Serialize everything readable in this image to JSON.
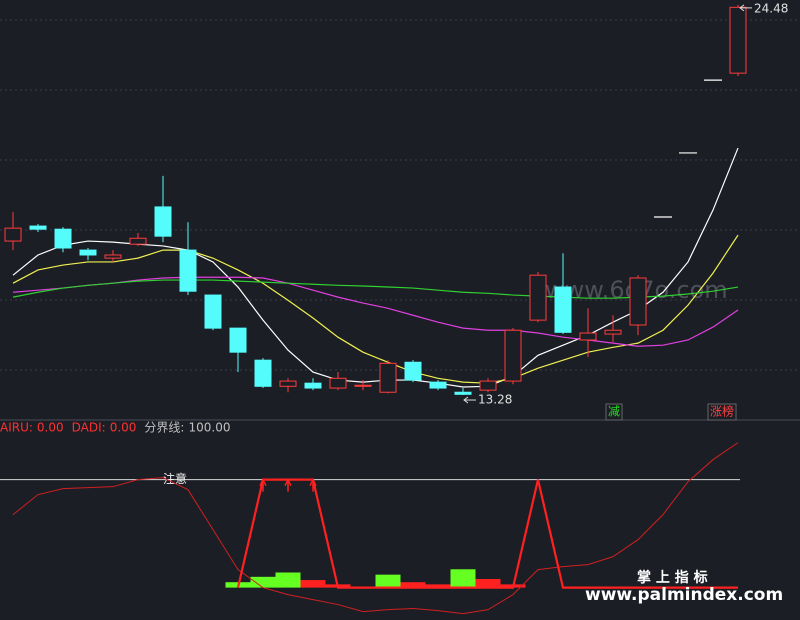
{
  "chart_data": [
    {
      "type": "candlestick",
      "ylim": [
        12.85,
        24.62
      ],
      "up_color": "#ff3c3c",
      "down_color": "#54fcfc",
      "flat_color": "#ffffff",
      "candles": {
        "open": [
          17.7,
          18.13,
          18.04,
          17.44,
          17.21,
          17.61,
          18.68,
          17.44,
          16.15,
          15.2,
          14.28,
          13.53,
          13.62,
          13.48,
          13.53,
          13.36,
          14.22,
          13.65,
          13.36,
          13.42,
          13.68,
          15.43,
          16.38,
          14.86,
          15.03,
          15.29,
          18.39,
          20.23,
          22.32,
          22.52
        ],
        "high": [
          18.53,
          18.19,
          18.1,
          17.5,
          17.44,
          17.93,
          19.57,
          18.24,
          16.15,
          15.2,
          14.34,
          13.76,
          13.76,
          13.94,
          13.71,
          14.28,
          14.28,
          13.71,
          13.48,
          13.76,
          15.2,
          16.81,
          17.35,
          15.77,
          15.57,
          16.72,
          18.39,
          20.23,
          22.32,
          24.48
        ],
        "low": [
          17.44,
          17.96,
          17.38,
          17.15,
          17.1,
          17.56,
          17.67,
          16.15,
          15.14,
          13.94,
          13.48,
          13.36,
          13.42,
          13.42,
          13.42,
          13.33,
          13.65,
          13.42,
          13.28,
          13.36,
          13.59,
          15.37,
          15.03,
          14.37,
          14.8,
          15.0,
          18.39,
          20.23,
          22.32,
          22.44
        ],
        "close": [
          18.07,
          18.04,
          17.5,
          17.3,
          17.3,
          17.78,
          17.84,
          16.26,
          15.2,
          14.51,
          13.53,
          13.68,
          13.48,
          13.76,
          13.56,
          14.19,
          13.71,
          13.48,
          13.3,
          13.68,
          15.14,
          16.72,
          15.08,
          15.06,
          15.14,
          16.64,
          18.39,
          20.23,
          22.32,
          24.41
        ]
      },
      "series": [
        {
          "color": "#ffffff",
          "values": [
            16.72,
            17.3,
            17.58,
            17.7,
            17.67,
            17.61,
            17.56,
            17.44,
            17.1,
            16.38,
            15.43,
            14.57,
            13.94,
            13.71,
            13.65,
            13.71,
            13.71,
            13.62,
            13.51,
            13.53,
            13.82,
            14.42,
            14.71,
            15.0,
            15.37,
            15.72,
            16.23,
            17.1,
            18.59,
            20.37
          ]
        },
        {
          "color": "#f0f050",
          "values": [
            16.49,
            16.87,
            17.01,
            17.1,
            17.1,
            17.21,
            17.44,
            17.44,
            17.21,
            16.87,
            16.49,
            16.0,
            15.49,
            14.94,
            14.51,
            14.22,
            13.94,
            13.76,
            13.65,
            13.62,
            13.76,
            14.05,
            14.28,
            14.51,
            14.65,
            14.77,
            15.14,
            15.86,
            16.78,
            17.87
          ]
        },
        {
          "color": "#e040e0",
          "values": [
            16.23,
            16.29,
            16.35,
            16.43,
            16.49,
            16.58,
            16.64,
            16.66,
            16.66,
            16.66,
            16.64,
            16.49,
            16.29,
            16.09,
            15.92,
            15.77,
            15.57,
            15.37,
            15.2,
            15.14,
            15.14,
            15.06,
            14.94,
            14.86,
            14.77,
            14.68,
            14.71,
            14.86,
            15.23,
            15.72
          ]
        },
        {
          "color": "#30d030",
          "values": [
            16.09,
            16.23,
            16.35,
            16.43,
            16.49,
            16.55,
            16.58,
            16.58,
            16.58,
            16.55,
            16.52,
            16.49,
            16.46,
            16.43,
            16.41,
            16.38,
            16.35,
            16.29,
            16.23,
            16.2,
            16.15,
            16.12,
            16.09,
            16.06,
            16.06,
            16.09,
            16.12,
            16.18,
            16.26,
            16.38
          ]
        }
      ],
      "max_label": 24.48,
      "min_label": 13.28,
      "annotations": [
        {
          "text": "减",
          "color": "#22dd22"
        },
        {
          "text": "涨榜",
          "color": "#ff4040"
        }
      ]
    },
    {
      "type": "indicator",
      "ylim": [
        -30,
        146
      ],
      "legend": [
        {
          "name": "AIRU:",
          "label": "0.00",
          "color": "#ff3030"
        },
        {
          "name": "DADI:",
          "label": "0.00",
          "color": "#ff3030"
        },
        {
          "name": "分界线:",
          "label": "100.00",
          "color": "#c0c0c0"
        }
      ],
      "threshold": 100,
      "threshold_label": "注意",
      "airu": {
        "color": "#d02020",
        "values": [
          67.6,
          86.1,
          91.7,
          92.6,
          93.5,
          100,
          101.9,
          90.7,
          53.7,
          16.7,
          0,
          -6.5,
          -11.1,
          -15.7,
          -22.2,
          -20.4,
          -19.4,
          -21.3,
          -24.1,
          -20.4,
          -6.5,
          16.7,
          19.4,
          21.3,
          28.7,
          44.4,
          67.6,
          98.1,
          118.5,
          134.3
        ]
      },
      "signal": {
        "color": "#ff2020",
        "values": [
          null,
          null,
          null,
          null,
          null,
          null,
          null,
          null,
          null,
          0,
          100,
          100,
          100,
          0,
          0,
          0,
          0,
          0,
          0,
          0,
          0,
          100,
          0,
          0,
          0,
          0,
          0,
          0,
          0,
          0
        ]
      },
      "dadi": {
        "values": [
          null,
          null,
          null,
          null,
          null,
          null,
          null,
          null,
          null,
          5,
          10,
          14,
          7,
          3,
          null,
          12,
          5,
          3,
          17,
          8,
          3,
          null,
          null,
          null,
          null,
          null,
          null,
          null,
          null,
          null
        ],
        "colors": [
          null,
          null,
          null,
          null,
          null,
          null,
          null,
          null,
          null,
          "#66ff22",
          "#66ff22",
          "#66ff22",
          "#ff2020",
          "#ff2020",
          null,
          "#66ff22",
          "#ff2020",
          "#ff2020",
          "#66ff22",
          "#ff2020",
          "#ff2020",
          null,
          null,
          null,
          null,
          null,
          null,
          null,
          null,
          null
        ]
      }
    }
  ],
  "watermarks": [
    "www.6o7o.com",
    "掌 上 指 标",
    "www.palmindex.com"
  ]
}
